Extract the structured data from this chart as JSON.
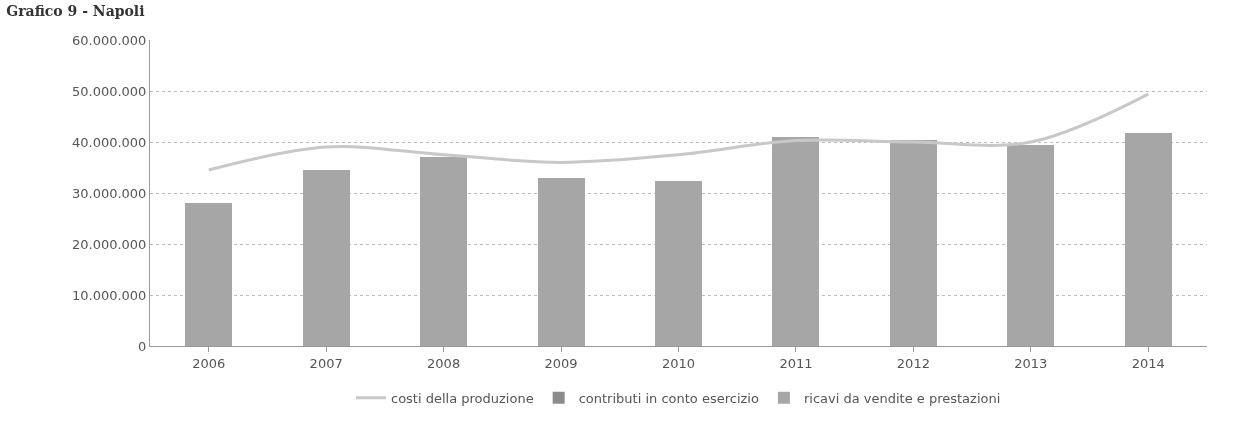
{
  "chart_data": {
    "type": "bar",
    "title": "Grafico 9 - Napoli",
    "categories": [
      "2006",
      "2007",
      "2008",
      "2009",
      "2010",
      "2011",
      "2012",
      "2013",
      "2014"
    ],
    "stacked": true,
    "series": [
      {
        "name": "ricavi da vendite e prestazioni",
        "color": "#a6a6a6",
        "values": [
          28000000,
          34500000,
          37000000,
          33000000,
          32400000,
          41000000,
          40400000,
          39500000,
          41700000
        ]
      },
      {
        "name": "contributi in conto esercizio",
        "color": "#8c8c8c",
        "values": [
          null,
          null,
          null,
          null,
          null,
          null,
          null,
          null,
          null
        ]
      },
      {
        "name": "costi della produzione",
        "type": "line",
        "color": "#c8c8c8",
        "values": [
          34500000,
          39000000,
          37500000,
          36000000,
          37500000,
          40300000,
          40000000,
          40000000,
          49400000
        ]
      }
    ],
    "ylim": [
      0,
      60000000
    ],
    "yticks": [
      {
        "value": 0,
        "label": "0"
      },
      {
        "value": 10000000,
        "label": "10.000.000"
      },
      {
        "value": 20000000,
        "label": "20.000.000"
      },
      {
        "value": 30000000,
        "label": "30.000.000"
      },
      {
        "value": 40000000,
        "label": "40.000.000"
      },
      {
        "value": 50000000,
        "label": "50.000.000"
      },
      {
        "value": 60000000,
        "label": "60.000.000"
      }
    ],
    "grid": "y",
    "legend": "bottom"
  }
}
